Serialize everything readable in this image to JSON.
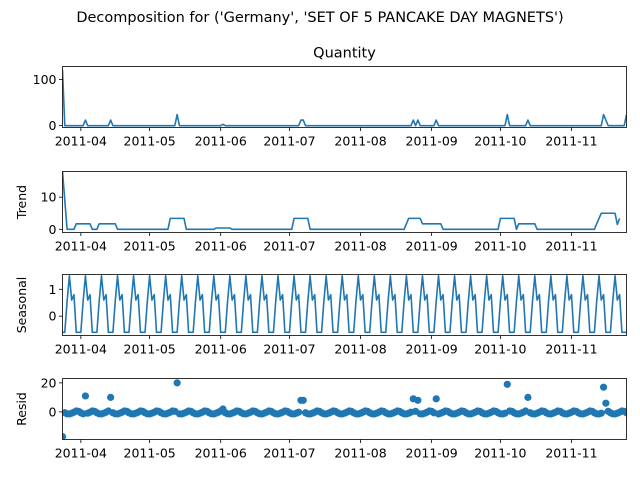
{
  "chart_data": {
    "type": "line",
    "title": "Decomposition for ('Germany', 'SET OF 5 PANCAKE DAY MAGNETS')",
    "x_start": "2011-03-24",
    "x_end": "2011-11-25",
    "xtick_labels": [
      "2011-04",
      "2011-05",
      "2011-06",
      "2011-07",
      "2011-08",
      "2011-09",
      "2011-10",
      "2011-11"
    ],
    "xtick_dates": [
      "2011-04-01",
      "2011-05-01",
      "2011-06-01",
      "2011-07-01",
      "2011-08-01",
      "2011-09-01",
      "2011-10-01",
      "2011-11-01"
    ],
    "panels": [
      {
        "id": "observed",
        "type": "line",
        "title": "Quantity",
        "ylabel": "",
        "ylim": [
          -4,
          128
        ],
        "yticks": [
          0,
          100
        ],
        "ytick_labels": [
          "0",
          "100"
        ],
        "points": [
          [
            "2011-03-24",
            120
          ],
          [
            "2011-03-25",
            0
          ],
          [
            "2011-04-02",
            0
          ],
          [
            "2011-04-03",
            12
          ],
          [
            "2011-04-04",
            0
          ],
          [
            "2011-04-13",
            0
          ],
          [
            "2011-04-14",
            12
          ],
          [
            "2011-04-15",
            0
          ],
          [
            "2011-05-12",
            0
          ],
          [
            "2011-05-13",
            24
          ],
          [
            "2011-05-14",
            0
          ],
          [
            "2011-06-01",
            0
          ],
          [
            "2011-06-02",
            3
          ],
          [
            "2011-06-03",
            0
          ],
          [
            "2011-07-05",
            0
          ],
          [
            "2011-07-06",
            12
          ],
          [
            "2011-07-07",
            12
          ],
          [
            "2011-07-08",
            0
          ],
          [
            "2011-08-23",
            0
          ],
          [
            "2011-08-24",
            12
          ],
          [
            "2011-08-25",
            0
          ],
          [
            "2011-08-26",
            12
          ],
          [
            "2011-08-27",
            0
          ],
          [
            "2011-09-02",
            0
          ],
          [
            "2011-09-03",
            12
          ],
          [
            "2011-09-04",
            0
          ],
          [
            "2011-10-03",
            0
          ],
          [
            "2011-10-04",
            24
          ],
          [
            "2011-10-05",
            0
          ],
          [
            "2011-10-12",
            0
          ],
          [
            "2011-10-13",
            12
          ],
          [
            "2011-10-14",
            0
          ],
          [
            "2011-11-14",
            0
          ],
          [
            "2011-11-15",
            24
          ],
          [
            "2011-11-17",
            0
          ],
          [
            "2011-11-24",
            0
          ],
          [
            "2011-11-25",
            24
          ]
        ]
      },
      {
        "id": "trend",
        "type": "line",
        "ylabel": "Trend",
        "ylim": [
          -1,
          18
        ],
        "yticks": [
          0,
          10
        ],
        "ytick_labels": [
          "0",
          "10"
        ],
        "points": [
          [
            "2011-03-24",
            18
          ],
          [
            "2011-03-26",
            0
          ],
          [
            "2011-03-29",
            0
          ],
          [
            "2011-03-30",
            1.7
          ],
          [
            "2011-04-05",
            1.7
          ],
          [
            "2011-04-06",
            0
          ],
          [
            "2011-04-08",
            0
          ],
          [
            "2011-04-09",
            1.7
          ],
          [
            "2011-04-16",
            1.7
          ],
          [
            "2011-04-17",
            0
          ],
          [
            "2011-05-09",
            0
          ],
          [
            "2011-05-10",
            3.4
          ],
          [
            "2011-05-16",
            3.4
          ],
          [
            "2011-05-17",
            0
          ],
          [
            "2011-05-29",
            0
          ],
          [
            "2011-05-30",
            0.4
          ],
          [
            "2011-06-05",
            0.4
          ],
          [
            "2011-06-06",
            0
          ],
          [
            "2011-07-02",
            0
          ],
          [
            "2011-07-03",
            3.4
          ],
          [
            "2011-07-09",
            3.4
          ],
          [
            "2011-07-10",
            0
          ],
          [
            "2011-08-20",
            0
          ],
          [
            "2011-08-21",
            1.7
          ],
          [
            "2011-08-22",
            3.4
          ],
          [
            "2011-08-27",
            3.4
          ],
          [
            "2011-08-28",
            1.7
          ],
          [
            "2011-09-05",
            1.7
          ],
          [
            "2011-09-06",
            0
          ],
          [
            "2011-09-30",
            0
          ],
          [
            "2011-10-01",
            3.4
          ],
          [
            "2011-10-07",
            3.4
          ],
          [
            "2011-10-08",
            0
          ],
          [
            "2011-10-09",
            1.7
          ],
          [
            "2011-10-16",
            1.7
          ],
          [
            "2011-10-17",
            0
          ],
          [
            "2011-11-11",
            0
          ],
          [
            "2011-11-12",
            1.7
          ],
          [
            "2011-11-14",
            5
          ],
          [
            "2011-11-20",
            5
          ],
          [
            "2011-11-21",
            1.5
          ],
          [
            "2011-11-22",
            3.4
          ]
        ]
      },
      {
        "id": "seasonal",
        "type": "line",
        "ylabel": "Seasonal",
        "ylim": [
          -0.72,
          1.55
        ],
        "yticks": [
          0,
          1
        ],
        "ytick_labels": [
          "0",
          "1"
        ],
        "period_days": 7,
        "cycle_start": "2011-03-24",
        "cycle_values": [
          -0.6,
          -0.6,
          0.55,
          1.5,
          0.6,
          0.8,
          -0.6
        ]
      },
      {
        "id": "resid",
        "type": "scatter",
        "ylabel": "Resid",
        "ylim": [
          -19,
          23
        ],
        "yticks": [
          0,
          20
        ],
        "ytick_labels": [
          "0",
          "20"
        ],
        "zero_line": true,
        "outliers": [
          [
            "2011-03-24",
            -17
          ],
          [
            "2011-04-03",
            11
          ],
          [
            "2011-04-14",
            10
          ],
          [
            "2011-05-13",
            20
          ],
          [
            "2011-06-02",
            2
          ],
          [
            "2011-07-06",
            8
          ],
          [
            "2011-07-07",
            8
          ],
          [
            "2011-08-24",
            9
          ],
          [
            "2011-08-26",
            8
          ],
          [
            "2011-09-03",
            9
          ],
          [
            "2011-10-04",
            19
          ],
          [
            "2011-10-13",
            10
          ],
          [
            "2011-11-15",
            17
          ],
          [
            "2011-11-16",
            6
          ]
        ],
        "baseline_pattern": [
          0.4,
          -0.6,
          -1.3,
          -1.4,
          -0.9,
          -0.2,
          0.6
        ]
      }
    ]
  }
}
